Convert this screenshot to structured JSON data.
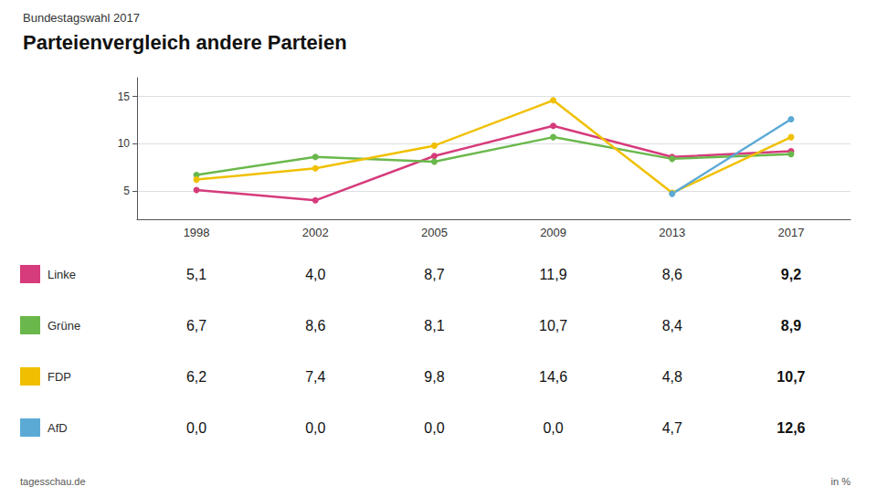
{
  "chart_data": {
    "type": "line",
    "subtitle": "Bundestagswahl 2017",
    "title": "Parteienvergleich andere Parteien",
    "categories": [
      "1998",
      "2002",
      "2005",
      "2009",
      "2013",
      "2017"
    ],
    "series": [
      {
        "name": "Linke",
        "color": "#d63b7b",
        "values": [
          5.1,
          4.0,
          8.7,
          11.9,
          8.6,
          9.2
        ],
        "value_labels": [
          "5,1",
          "4,0",
          "8,7",
          "11,9",
          "8,6",
          "9,2"
        ]
      },
      {
        "name": "Grüne",
        "color": "#6ab84c",
        "values": [
          6.7,
          8.6,
          8.1,
          10.7,
          8.4,
          8.9
        ],
        "value_labels": [
          "6,7",
          "8,6",
          "8,1",
          "10,7",
          "8,4",
          "8,9"
        ]
      },
      {
        "name": "FDP",
        "color": "#f0c000",
        "values": [
          6.2,
          7.4,
          9.8,
          14.6,
          4.8,
          10.7
        ],
        "value_labels": [
          "6,2",
          "7,4",
          "9,8",
          "14,6",
          "4,8",
          "10,7"
        ]
      },
      {
        "name": "AfD",
        "color": "#5baad6",
        "values": [
          null,
          null,
          null,
          null,
          4.7,
          12.6
        ],
        "value_labels": [
          "0,0",
          "0,0",
          "0,0",
          "0,0",
          "4,7",
          "12,6"
        ]
      }
    ],
    "ylim": [
      2,
      17
    ],
    "yticks": [
      5,
      10,
      15
    ],
    "grid": true,
    "marker": "circle",
    "annotations": [
      "tagesschau.de",
      "in %"
    ]
  }
}
